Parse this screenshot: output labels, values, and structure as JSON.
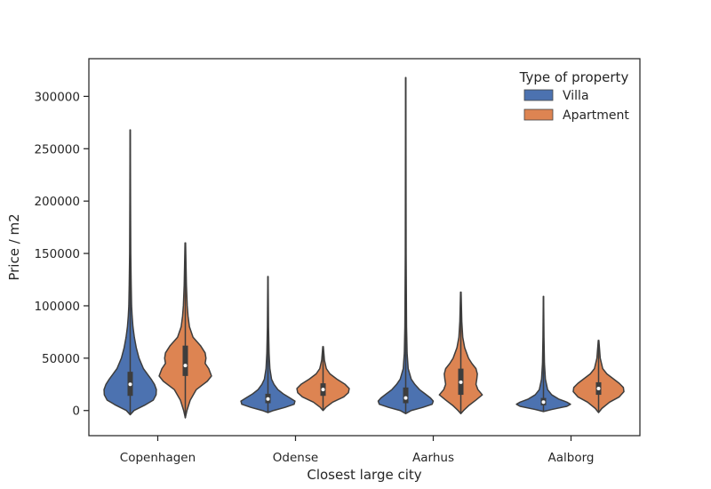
{
  "chart_data": {
    "type": "violin",
    "title": "",
    "xlabel": "Closest large city",
    "ylabel": "Price / m2",
    "categories": [
      "Copenhagen",
      "Odense",
      "Aarhus",
      "Aalborg"
    ],
    "ylim": [
      -24000,
      336000
    ],
    "yticks": [
      0,
      50000,
      100000,
      150000,
      200000,
      250000,
      300000
    ],
    "ytick_labels": [
      "0",
      "50000",
      "100000",
      "150000",
      "200000",
      "250000",
      "300000"
    ],
    "grid": false,
    "legend": {
      "title": "Type of property",
      "placement": "top-right",
      "entries": [
        "Villa",
        "Apartment"
      ]
    },
    "series": [
      {
        "name": "Villa",
        "color": "#4c72b0",
        "violins": [
          {
            "min": -4000,
            "max": 268000,
            "q1": 14000,
            "median": 25000,
            "q3": 37000,
            "profile": [
              [
                -4000,
                0.0
              ],
              [
                0,
                0.14
              ],
              [
                5000,
                0.52
              ],
              [
                10000,
                0.84
              ],
              [
                15000,
                0.94
              ],
              [
                20000,
                0.95
              ],
              [
                25000,
                0.88
              ],
              [
                30000,
                0.76
              ],
              [
                35000,
                0.62
              ],
              [
                40000,
                0.48
              ],
              [
                50000,
                0.32
              ],
              [
                60000,
                0.22
              ],
              [
                70000,
                0.15
              ],
              [
                80000,
                0.1
              ],
              [
                90000,
                0.07
              ],
              [
                100000,
                0.05
              ],
              [
                120000,
                0.035
              ],
              [
                150000,
                0.02
              ],
              [
                200000,
                0.012
              ],
              [
                268000,
                0.005
              ]
            ]
          },
          {
            "min": -2000,
            "max": 128000,
            "q1": 7000,
            "median": 11000,
            "q3": 16000,
            "profile": [
              [
                -2000,
                0.0
              ],
              [
                0,
                0.2
              ],
              [
                3000,
                0.62
              ],
              [
                6000,
                0.95
              ],
              [
                9000,
                0.98
              ],
              [
                12000,
                0.8
              ],
              [
                16000,
                0.55
              ],
              [
                20000,
                0.36
              ],
              [
                25000,
                0.22
              ],
              [
                30000,
                0.13
              ],
              [
                40000,
                0.07
              ],
              [
                55000,
                0.04
              ],
              [
                80000,
                0.02
              ],
              [
                128000,
                0.005
              ]
            ]
          },
          {
            "min": -3000,
            "max": 318000,
            "q1": 7000,
            "median": 12000,
            "q3": 22000,
            "profile": [
              [
                -3000,
                0.0
              ],
              [
                0,
                0.2
              ],
              [
                3000,
                0.62
              ],
              [
                6000,
                0.96
              ],
              [
                9000,
                1.0
              ],
              [
                12000,
                0.9
              ],
              [
                16000,
                0.7
              ],
              [
                20000,
                0.5
              ],
              [
                25000,
                0.33
              ],
              [
                30000,
                0.2
              ],
              [
                40000,
                0.09
              ],
              [
                55000,
                0.05
              ],
              [
                80000,
                0.03
              ],
              [
                150000,
                0.015
              ],
              [
                318000,
                0.005
              ]
            ]
          },
          {
            "min": -1000,
            "max": 109000,
            "q1": 5000,
            "median": 8000,
            "q3": 12000,
            "profile": [
              [
                -1000,
                0.0
              ],
              [
                1000,
                0.3
              ],
              [
                4000,
                0.85
              ],
              [
                6000,
                0.98
              ],
              [
                8000,
                0.85
              ],
              [
                11000,
                0.55
              ],
              [
                15000,
                0.3
              ],
              [
                20000,
                0.15
              ],
              [
                30000,
                0.07
              ],
              [
                45000,
                0.035
              ],
              [
                70000,
                0.018
              ],
              [
                109000,
                0.005
              ]
            ]
          }
        ]
      },
      {
        "name": "Apartment",
        "color": "#dd8452",
        "violins": [
          {
            "min": -7000,
            "max": 160000,
            "q1": 33000,
            "median": 43000,
            "q3": 62000,
            "profile": [
              [
                -7000,
                0.0
              ],
              [
                0,
                0.06
              ],
              [
                10000,
                0.18
              ],
              [
                20000,
                0.4
              ],
              [
                28000,
                0.8
              ],
              [
                33000,
                0.95
              ],
              [
                40000,
                0.85
              ],
              [
                45000,
                0.72
              ],
              [
                50000,
                0.75
              ],
              [
                55000,
                0.72
              ],
              [
                62000,
                0.55
              ],
              [
                70000,
                0.28
              ],
              [
                80000,
                0.15
              ],
              [
                90000,
                0.1
              ],
              [
                100000,
                0.07
              ],
              [
                120000,
                0.04
              ],
              [
                140000,
                0.025
              ],
              [
                160000,
                0.01
              ]
            ]
          },
          {
            "min": 0,
            "max": 61000,
            "q1": 14000,
            "median": 20000,
            "q3": 26000,
            "profile": [
              [
                0,
                0.0
              ],
              [
                3000,
                0.1
              ],
              [
                8000,
                0.35
              ],
              [
                13000,
                0.75
              ],
              [
                17000,
                0.92
              ],
              [
                21000,
                0.95
              ],
              [
                25000,
                0.8
              ],
              [
                30000,
                0.5
              ],
              [
                35000,
                0.25
              ],
              [
                40000,
                0.12
              ],
              [
                48000,
                0.05
              ],
              [
                61000,
                0.01
              ]
            ]
          },
          {
            "min": -3000,
            "max": 113000,
            "q1": 15000,
            "median": 27000,
            "q3": 40000,
            "profile": [
              [
                -3000,
                0.0
              ],
              [
                0,
                0.1
              ],
              [
                5000,
                0.3
              ],
              [
                10000,
                0.55
              ],
              [
                15000,
                0.78
              ],
              [
                20000,
                0.62
              ],
              [
                25000,
                0.55
              ],
              [
                30000,
                0.58
              ],
              [
                35000,
                0.6
              ],
              [
                40000,
                0.55
              ],
              [
                45000,
                0.4
              ],
              [
                50000,
                0.28
              ],
              [
                60000,
                0.14
              ],
              [
                70000,
                0.07
              ],
              [
                85000,
                0.035
              ],
              [
                113000,
                0.01
              ]
            ]
          },
          {
            "min": -2000,
            "max": 67000,
            "q1": 15000,
            "median": 21000,
            "q3": 27000,
            "profile": [
              [
                -2000,
                0.0
              ],
              [
                2000,
                0.12
              ],
              [
                8000,
                0.4
              ],
              [
                13000,
                0.75
              ],
              [
                18000,
                0.92
              ],
              [
                22000,
                0.9
              ],
              [
                26000,
                0.75
              ],
              [
                30000,
                0.55
              ],
              [
                35000,
                0.3
              ],
              [
                40000,
                0.15
              ],
              [
                50000,
                0.06
              ],
              [
                67000,
                0.01
              ]
            ]
          }
        ]
      }
    ]
  }
}
